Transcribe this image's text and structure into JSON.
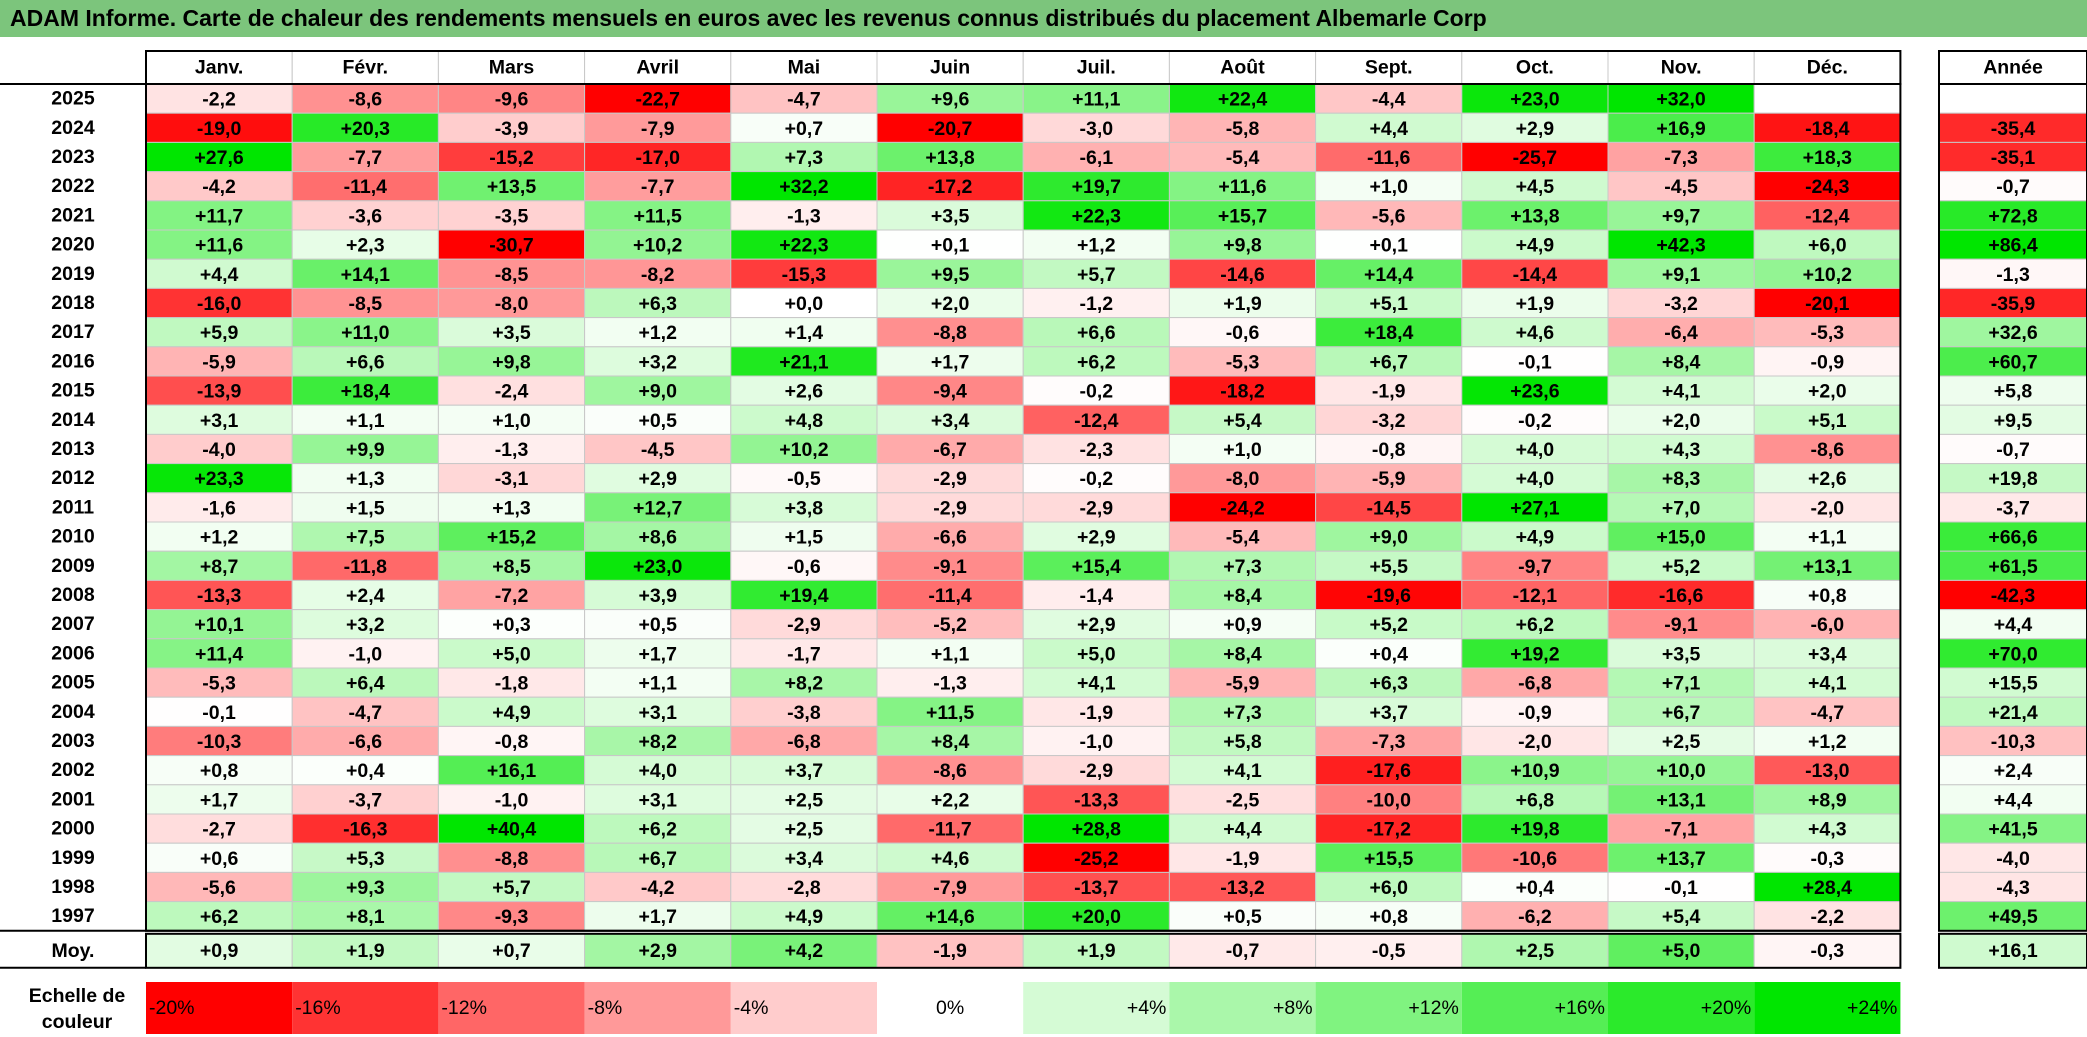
{
  "title": "ADAM Informe. Carte de chaleur des rendements mensuels en euros avec les revenus connus distribués du placement Albemarle Corp",
  "months": [
    "Janv.",
    "Févr.",
    "Mars",
    "Avril",
    "Mai",
    "Juin",
    "Juil.",
    "Août",
    "Sept.",
    "Oct.",
    "Nov.",
    "Déc."
  ],
  "year_header": "Année",
  "avg_label": "Moy.",
  "scale_label_line1": "Echelle de",
  "scale_label_line2": "couleur",
  "colors": {
    "negative": "#ff0000",
    "neutral": "#ffffff",
    "positive": "#00e600",
    "title_bg": "#7cc57c"
  },
  "chart_data": {
    "type": "heatmap",
    "title": "ADAM Informe. Carte de chaleur des rendements mensuels en euros avec les revenus connus distribués du placement Albemarle Corp",
    "columns": [
      "Janv.",
      "Févr.",
      "Mars",
      "Avril",
      "Mai",
      "Juin",
      "Juil.",
      "Août",
      "Sept.",
      "Oct.",
      "Nov.",
      "Déc."
    ],
    "rows": [
      {
        "year": "2025",
        "values": [
          "-2,2",
          "-8,6",
          "-9,6",
          "-22,7",
          "-4,7",
          "+9,6",
          "+11,1",
          "+22,4",
          "-4,4",
          "+23,0",
          "+32,0",
          ""
        ],
        "annual": ""
      },
      {
        "year": "2024",
        "values": [
          "-19,0",
          "+20,3",
          "-3,9",
          "-7,9",
          "+0,7",
          "-20,7",
          "-3,0",
          "-5,8",
          "+4,4",
          "+2,9",
          "+16,9",
          "-18,4"
        ],
        "annual": "-35,4"
      },
      {
        "year": "2023",
        "values": [
          "+27,6",
          "-7,7",
          "-15,2",
          "-17,0",
          "+7,3",
          "+13,8",
          "-6,1",
          "-5,4",
          "-11,6",
          "-25,7",
          "-7,3",
          "+18,3"
        ],
        "annual": "-35,1"
      },
      {
        "year": "2022",
        "values": [
          "-4,2",
          "-11,4",
          "+13,5",
          "-7,7",
          "+32,2",
          "-17,2",
          "+19,7",
          "+11,6",
          "+1,0",
          "+4,5",
          "-4,5",
          "-24,3"
        ],
        "annual": "-0,7"
      },
      {
        "year": "2021",
        "values": [
          "+11,7",
          "-3,6",
          "-3,5",
          "+11,5",
          "-1,3",
          "+3,5",
          "+22,3",
          "+15,7",
          "-5,6",
          "+13,8",
          "+9,7",
          "-12,4"
        ],
        "annual": "+72,8"
      },
      {
        "year": "2020",
        "values": [
          "+11,6",
          "+2,3",
          "-30,7",
          "+10,2",
          "+22,3",
          "+0,1",
          "+1,2",
          "+9,8",
          "+0,1",
          "+4,9",
          "+42,3",
          "+6,0"
        ],
        "annual": "+86,4"
      },
      {
        "year": "2019",
        "values": [
          "+4,4",
          "+14,1",
          "-8,5",
          "-8,2",
          "-15,3",
          "+9,5",
          "+5,7",
          "-14,6",
          "+14,4",
          "-14,4",
          "+9,1",
          "+10,2"
        ],
        "annual": "-1,3"
      },
      {
        "year": "2018",
        "values": [
          "-16,0",
          "-8,5",
          "-8,0",
          "+6,3",
          "+0,0",
          "+2,0",
          "-1,2",
          "+1,9",
          "+5,1",
          "+1,9",
          "-3,2",
          "-20,1"
        ],
        "annual": "-35,9"
      },
      {
        "year": "2017",
        "values": [
          "+5,9",
          "+11,0",
          "+3,5",
          "+1,2",
          "+1,4",
          "-8,8",
          "+6,6",
          "-0,6",
          "+18,4",
          "+4,6",
          "-6,4",
          "-5,3"
        ],
        "annual": "+32,6"
      },
      {
        "year": "2016",
        "values": [
          "-5,9",
          "+6,6",
          "+9,8",
          "+3,2",
          "+21,1",
          "+1,7",
          "+6,2",
          "-5,3",
          "+6,7",
          "-0,1",
          "+8,4",
          "-0,9"
        ],
        "annual": "+60,7"
      },
      {
        "year": "2015",
        "values": [
          "-13,9",
          "+18,4",
          "-2,4",
          "+9,0",
          "+2,6",
          "-9,4",
          "-0,2",
          "-18,2",
          "-1,9",
          "+23,6",
          "+4,1",
          "+2,0"
        ],
        "annual": "+5,8"
      },
      {
        "year": "2014",
        "values": [
          "+3,1",
          "+1,1",
          "+1,0",
          "+0,5",
          "+4,8",
          "+3,4",
          "-12,4",
          "+5,4",
          "-3,2",
          "-0,2",
          "+2,0",
          "+5,1"
        ],
        "annual": "+9,5"
      },
      {
        "year": "2013",
        "values": [
          "-4,0",
          "+9,9",
          "-1,3",
          "-4,5",
          "+10,2",
          "-6,7",
          "-2,3",
          "+1,0",
          "-0,8",
          "+4,0",
          "+4,3",
          "-8,6"
        ],
        "annual": "-0,7"
      },
      {
        "year": "2012",
        "values": [
          "+23,3",
          "+1,3",
          "-3,1",
          "+2,9",
          "-0,5",
          "-2,9",
          "-0,2",
          "-8,0",
          "-5,9",
          "+4,0",
          "+8,3",
          "+2,6"
        ],
        "annual": "+19,8"
      },
      {
        "year": "2011",
        "values": [
          "-1,6",
          "+1,5",
          "+1,3",
          "+12,7",
          "+3,8",
          "-2,9",
          "-2,9",
          "-24,2",
          "-14,5",
          "+27,1",
          "+7,0",
          "-2,0"
        ],
        "annual": "-3,7"
      },
      {
        "year": "2010",
        "values": [
          "+1,2",
          "+7,5",
          "+15,2",
          "+8,6",
          "+1,5",
          "-6,6",
          "+2,9",
          "-5,4",
          "+9,0",
          "+4,9",
          "+15,0",
          "+1,1"
        ],
        "annual": "+66,6"
      },
      {
        "year": "2009",
        "values": [
          "+8,7",
          "-11,8",
          "+8,5",
          "+23,0",
          "-0,6",
          "-9,1",
          "+15,4",
          "+7,3",
          "+5,5",
          "-9,7",
          "+5,2",
          "+13,1"
        ],
        "annual": "+61,5"
      },
      {
        "year": "2008",
        "values": [
          "-13,3",
          "+2,4",
          "-7,2",
          "+3,9",
          "+19,4",
          "-11,4",
          "-1,4",
          "+8,4",
          "-19,6",
          "-12,1",
          "-16,6",
          "+0,8"
        ],
        "annual": "-42,3"
      },
      {
        "year": "2007",
        "values": [
          "+10,1",
          "+3,2",
          "+0,3",
          "+0,5",
          "-2,9",
          "-5,2",
          "+2,9",
          "+0,9",
          "+5,2",
          "+6,2",
          "-9,1",
          "-6,0"
        ],
        "annual": "+4,4"
      },
      {
        "year": "2006",
        "values": [
          "+11,4",
          "-1,0",
          "+5,0",
          "+1,7",
          "-1,7",
          "+1,1",
          "+5,0",
          "+8,4",
          "+0,4",
          "+19,2",
          "+3,5",
          "+3,4"
        ],
        "annual": "+70,0"
      },
      {
        "year": "2005",
        "values": [
          "-5,3",
          "+6,4",
          "-1,8",
          "+1,1",
          "+8,2",
          "-1,3",
          "+4,1",
          "-5,9",
          "+6,3",
          "-6,8",
          "+7,1",
          "+4,1"
        ],
        "annual": "+15,5"
      },
      {
        "year": "2004",
        "values": [
          "-0,1",
          "-4,7",
          "+4,9",
          "+3,1",
          "-3,8",
          "+11,5",
          "-1,9",
          "+7,3",
          "+3,7",
          "-0,9",
          "+6,7",
          "-4,7"
        ],
        "annual": "+21,4"
      },
      {
        "year": "2003",
        "values": [
          "-10,3",
          "-6,6",
          "-0,8",
          "+8,2",
          "-6,8",
          "+8,4",
          "-1,0",
          "+5,8",
          "-7,3",
          "-2,0",
          "+2,5",
          "+1,2"
        ],
        "annual": "-10,3"
      },
      {
        "year": "2002",
        "values": [
          "+0,8",
          "+0,4",
          "+16,1",
          "+4,0",
          "+3,7",
          "-8,6",
          "-2,9",
          "+4,1",
          "-17,6",
          "+10,9",
          "+10,0",
          "-13,0"
        ],
        "annual": "+2,4"
      },
      {
        "year": "2001",
        "values": [
          "+1,7",
          "-3,7",
          "-1,0",
          "+3,1",
          "+2,5",
          "+2,2",
          "-13,3",
          "-2,5",
          "-10,0",
          "+6,8",
          "+13,1",
          "+8,9"
        ],
        "annual": "+4,4"
      },
      {
        "year": "2000",
        "values": [
          "-2,7",
          "-16,3",
          "+40,4",
          "+6,2",
          "+2,5",
          "-11,7",
          "+28,8",
          "+4,4",
          "-17,2",
          "+19,8",
          "-7,1",
          "+4,3"
        ],
        "annual": "+41,5"
      },
      {
        "year": "1999",
        "values": [
          "+0,6",
          "+5,3",
          "-8,8",
          "+6,7",
          "+3,4",
          "+4,6",
          "-25,2",
          "-1,9",
          "+15,5",
          "-10,6",
          "+13,7",
          "-0,3"
        ],
        "annual": "-4,0"
      },
      {
        "year": "1998",
        "values": [
          "-5,6",
          "+9,3",
          "+5,7",
          "-4,2",
          "-2,8",
          "-7,9",
          "-13,7",
          "-13,2",
          "+6,0",
          "+0,4",
          "-0,1",
          "+28,4"
        ],
        "annual": "-4,3"
      },
      {
        "year": "1997",
        "values": [
          "+6,2",
          "+8,1",
          "-9,3",
          "+1,7",
          "+4,9",
          "+14,6",
          "+20,0",
          "+0,5",
          "+0,8",
          "-6,2",
          "+5,4",
          "-2,2"
        ],
        "annual": "+49,5"
      }
    ],
    "averages": [
      "+0,9",
      "+1,9",
      "+0,7",
      "+2,9",
      "+4,2",
      "-1,9",
      "+1,9",
      "-0,7",
      "-0,5",
      "+2,5",
      "+5,0",
      "-0,3"
    ],
    "average_annual": "+16,1",
    "scale": [
      "-20%",
      "-16%",
      "-12%",
      "-8%",
      "-4%",
      "0%",
      "+4%",
      "+8%",
      "+12%",
      "+16%",
      "+20%",
      "+24%"
    ],
    "color_range": [
      -20,
      24
    ]
  }
}
